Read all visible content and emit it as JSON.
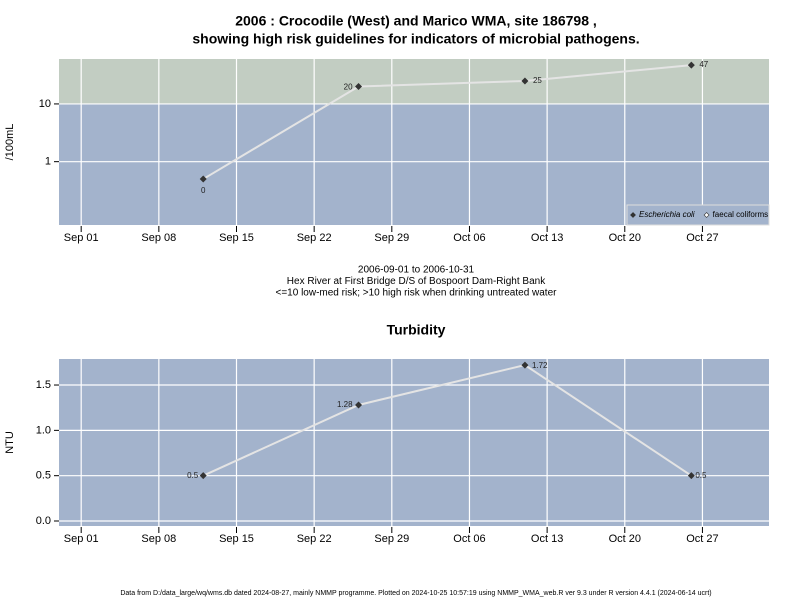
{
  "chart_data": [
    {
      "type": "line",
      "title": [
        "2006 : Crocodile (West) and Marico WMA, site 186798 ,",
        "showing high risk guidelines for indicators of microbial pathogens."
      ],
      "ylabel": "/100mL",
      "yscale": "log",
      "ylim": [
        0.08,
        60
      ],
      "yticks": [
        1,
        10
      ],
      "xlim": [
        "2006-08-30",
        "2006-11-02"
      ],
      "xticks": [
        {
          "value": "2006-09-01",
          "label": "Sep 01"
        },
        {
          "value": "2006-09-08",
          "label": "Sep 08"
        },
        {
          "value": "2006-09-15",
          "label": "Sep 15"
        },
        {
          "value": "2006-09-22",
          "label": "Sep 22"
        },
        {
          "value": "2006-09-29",
          "label": "Sep 29"
        },
        {
          "value": "2006-10-06",
          "label": "Oct 06"
        },
        {
          "value": "2006-10-13",
          "label": "Oct 13"
        },
        {
          "value": "2006-10-20",
          "label": "Oct 20"
        },
        {
          "value": "2006-10-27",
          "label": "Oct 27"
        }
      ],
      "x": [
        "2006-09-12",
        "2006-09-26",
        "2006-10-11",
        "2006-10-26"
      ],
      "series": [
        {
          "name": "Escherichia coli",
          "color": "#333333",
          "values": [
            0.5,
            20,
            25,
            47
          ],
          "value_labels": [
            "0",
            "20",
            "25",
            "47"
          ]
        },
        {
          "name": "faecal coliforms",
          "color": "#ffffff",
          "values": [
            null,
            null,
            null,
            null
          ]
        }
      ],
      "threshold": 10,
      "background": "#a3b3cc",
      "above_color": "#c2cdc2",
      "line_color": "#e4e4e4",
      "grid": true,
      "legend": "lower right",
      "caption": [
        "2006-09-01 to 2006-10-31",
        "Hex River at First Bridge D/S of Bospoort Dam-Right Bank",
        "<=10 low-med risk; >10 high risk when drinking untreated water"
      ]
    },
    {
      "type": "line",
      "title": [
        "Turbidity"
      ],
      "ylabel": "NTU",
      "ylim": [
        -0.055,
        1.787
      ],
      "yticks": [
        {
          "value": 0,
          "label": "0.0"
        },
        0.5,
        {
          "value": 1,
          "label": "1.0"
        },
        {
          "value": 1.5,
          "label": "1.5"
        }
      ],
      "xlim": [
        "2006-08-30",
        "2006-11-02"
      ],
      "xticks": [
        {
          "value": "2006-09-01",
          "label": "Sep 01"
        },
        {
          "value": "2006-09-08",
          "label": "Sep 08"
        },
        {
          "value": "2006-09-15",
          "label": "Sep 15"
        },
        {
          "value": "2006-09-22",
          "label": "Sep 22"
        },
        {
          "value": "2006-09-29",
          "label": "Sep 29"
        },
        {
          "value": "2006-10-06",
          "label": "Oct 06"
        },
        {
          "value": "2006-10-13",
          "label": "Oct 13"
        },
        {
          "value": "2006-10-20",
          "label": "Oct 20"
        },
        {
          "value": "2006-10-27",
          "label": "Oct 27"
        }
      ],
      "x": [
        "2006-09-12",
        "2006-09-26",
        "2006-10-11",
        "2006-10-26"
      ],
      "series": [
        {
          "color": "#333333",
          "values": [
            0.5,
            1.28,
            1.72,
            0.5
          ]
        }
      ],
      "background": "#a3b3cc",
      "line_color": "#e4e4e4",
      "grid": true
    }
  ],
  "footer": "Data from D:/data_large/wq/wms.db dated 2024-08-27, mainly NMMP programme. Plotted on 2024-10-25 10:57:19 using NMMP_WMA_web.R ver 9.3 under R version 4.4.1 (2024-06-14 ucrt)"
}
